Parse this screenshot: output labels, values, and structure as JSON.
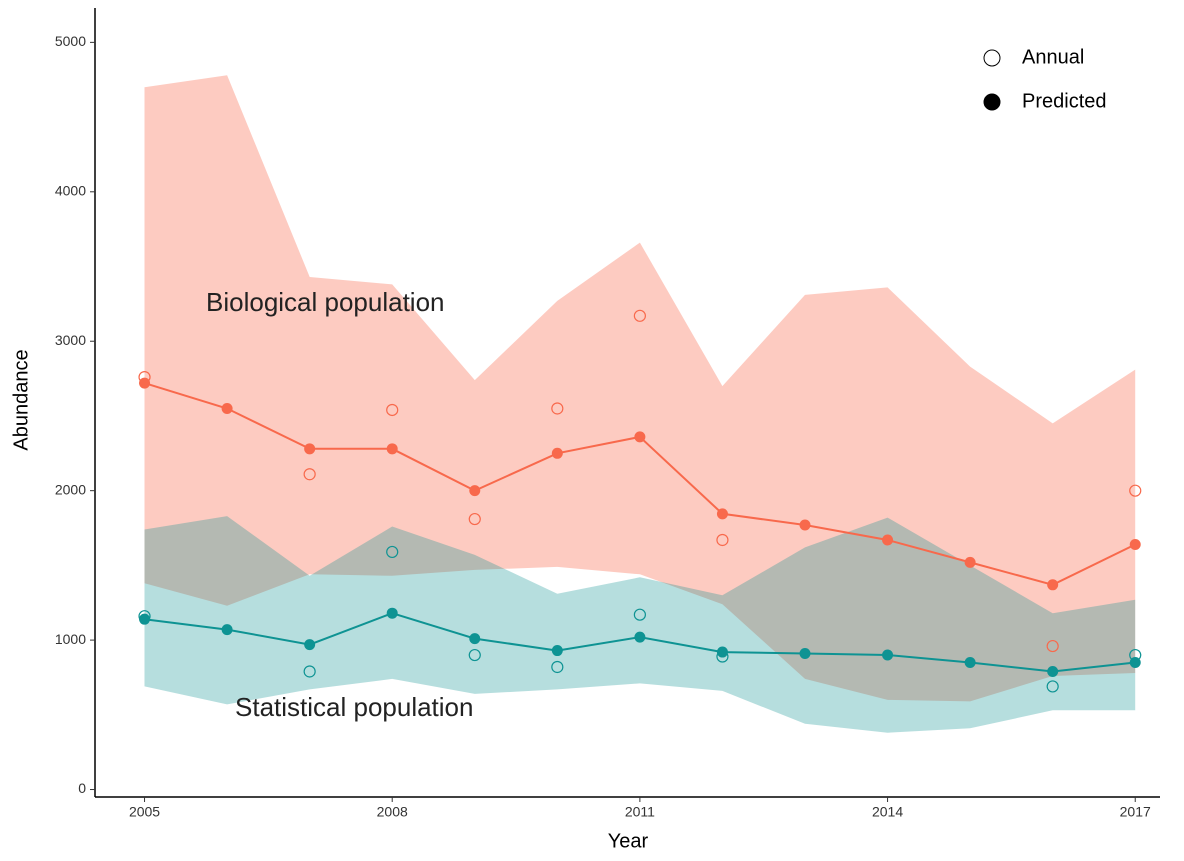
{
  "chart_data": {
    "type": "line",
    "x_label": "Year",
    "y_label": "Abundance",
    "x": [
      2005,
      2006,
      2007,
      2008,
      2009,
      2010,
      2011,
      2012,
      2013,
      2014,
      2015,
      2016,
      2017
    ],
    "xlim": [
      2004.4,
      2017.3
    ],
    "xticks": [
      2005,
      2008,
      2011,
      2014,
      2017
    ],
    "ylim": [
      -50,
      5230
    ],
    "yticks": [
      0,
      1000,
      2000,
      3000,
      4000,
      5000
    ],
    "grid": false,
    "legend": {
      "position": "upper right",
      "entries": [
        "Annual",
        "Predicted"
      ]
    },
    "series": [
      {
        "name": "Biological population",
        "color": "#f8694c",
        "values": [
          2720,
          2550,
          2280,
          2280,
          2000,
          2250,
          2360,
          1845,
          1770,
          1670,
          1520,
          1370,
          1640
        ],
        "annual": [
          2760,
          null,
          2110,
          2540,
          1810,
          2550,
          3170,
          1670,
          null,
          null,
          null,
          960,
          2000
        ],
        "upper": [
          4700,
          4780,
          3430,
          3380,
          2740,
          3270,
          3660,
          2700,
          3310,
          3360,
          2830,
          2450,
          2810
        ],
        "lower": [
          1380,
          1230,
          1440,
          1430,
          1470,
          1490,
          1440,
          1240,
          740,
          600,
          590,
          760,
          780
        ]
      },
      {
        "name": "Statistical population",
        "color": "#0e9393",
        "values": [
          1140,
          1070,
          970,
          1180,
          1010,
          930,
          1020,
          920,
          910,
          900,
          850,
          790,
          850
        ],
        "annual": [
          1160,
          null,
          790,
          1590,
          900,
          820,
          1170,
          890,
          null,
          null,
          null,
          690,
          900
        ],
        "upper": [
          1740,
          1830,
          1430,
          1760,
          1570,
          1310,
          1420,
          1300,
          1620,
          1820,
          1500,
          1180,
          1270
        ],
        "lower": [
          690,
          570,
          670,
          740,
          640,
          670,
          710,
          660,
          440,
          380,
          410,
          530,
          530
        ]
      }
    ]
  }
}
